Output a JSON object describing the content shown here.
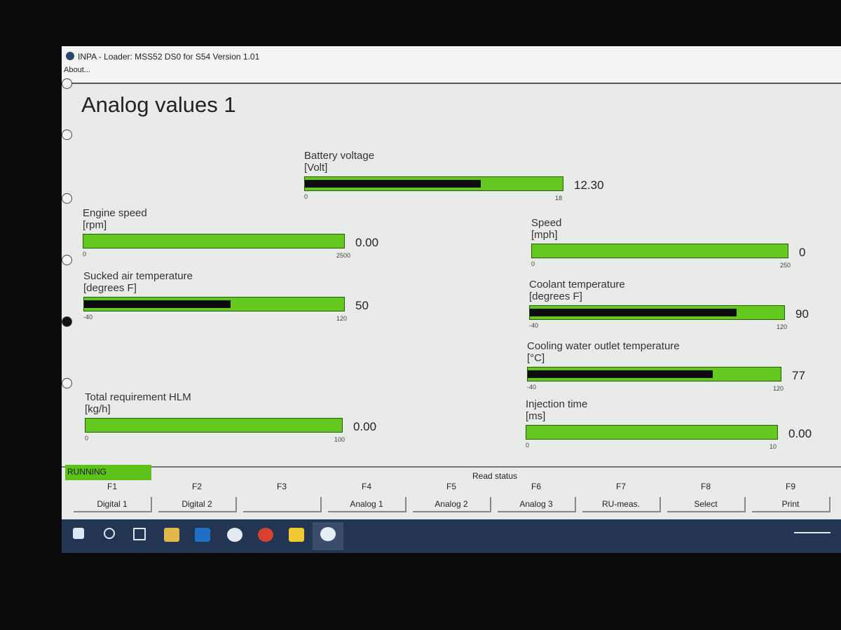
{
  "window": {
    "title": "INPA - Loader: MSS52 DS0 for S54 Version 1.01",
    "menu": "About..."
  },
  "screen": {
    "heading": "Analog values 1"
  },
  "gauges": [
    {
      "label": "Battery voltage",
      "unit": "[Volt]",
      "min": 0,
      "max": 18,
      "value": 12.3,
      "value_label": "12.30"
    },
    {
      "label": "Engine speed",
      "unit": "[rpm]",
      "min": 0,
      "max": 2500,
      "value": 0,
      "value_label": "0.00"
    },
    {
      "label": "Speed",
      "unit": "[mph]",
      "min": 0,
      "max": 250,
      "value": 0
    },
    {
      "label": "Sucked air temperature",
      "unit": "[degrees F]",
      "min": -40,
      "max": 120,
      "value": 50
    },
    {
      "label": "Coolant temperature",
      "unit": "[degrees F]",
      "min": -40,
      "max": 120,
      "value": 90
    },
    {
      "label": "Cooling water outlet temperature",
      "unit": "[°C]",
      "min": -40,
      "max": 120,
      "value": 77
    },
    {
      "label": "Total requirement HLM",
      "unit": "[kg/h]",
      "min": 0,
      "max": 100,
      "value": 0,
      "value_label": "0.00"
    },
    {
      "label": "Injection time",
      "unit": "[ms]",
      "min": 0,
      "max": 10,
      "value": 0,
      "value_label": "0.00"
    }
  ],
  "status": {
    "state": "RUNNING",
    "message": "Read status"
  },
  "function_keys": [
    {
      "key": "F1",
      "label": "Digital 1"
    },
    {
      "key": "F2",
      "label": "Digital 2"
    },
    {
      "key": "F3"
    },
    {
      "key": "F4",
      "label": "Analog 1"
    },
    {
      "key": "F5",
      "label": "Analog 2"
    },
    {
      "key": "F6",
      "label": "Analog 3"
    },
    {
      "key": "F7",
      "label": "RU-meas."
    },
    {
      "key": "F8",
      "label": "Select"
    },
    {
      "key": "F9",
      "label": "Print"
    }
  ]
}
